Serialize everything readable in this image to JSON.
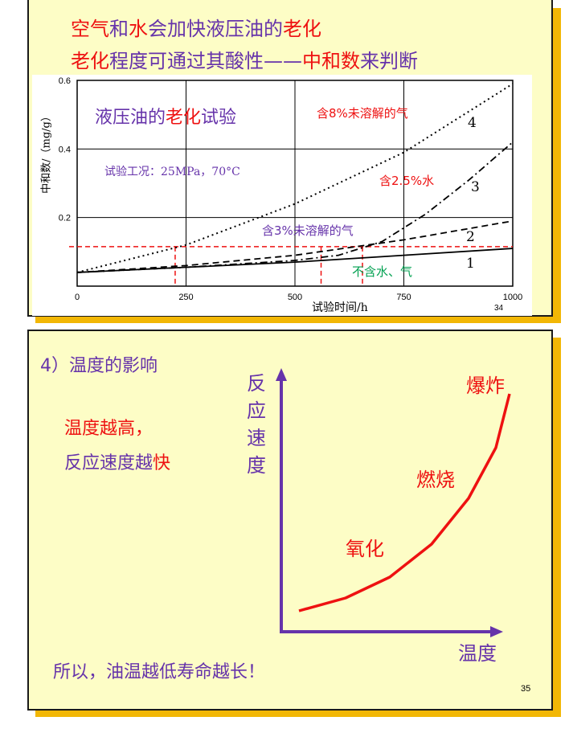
{
  "slide1": {
    "title_line1": [
      {
        "text": "空气",
        "color": "#ee1111"
      },
      {
        "text": "和",
        "color": "#6633aa"
      },
      {
        "text": "水",
        "color": "#ee1111"
      },
      {
        "text": "会加快液压油的",
        "color": "#6633aa"
      },
      {
        "text": "老化",
        "color": "#ee1111"
      }
    ],
    "title_line2": [
      {
        "text": "老化",
        "color": "#ee1111"
      },
      {
        "text": "程度可通过其酸性——",
        "color": "#6633aa"
      },
      {
        "text": "中和数",
        "color": "#ee1111"
      },
      {
        "text": "来判断",
        "color": "#6633aa"
      }
    ],
    "page_number": "34"
  },
  "chart_data": {
    "type": "line",
    "ylabel": "中和数/（mg/g）",
    "xlabel": "试验时间/h",
    "xlim": [
      0,
      1000
    ],
    "ylim": [
      0,
      0.6
    ],
    "x_ticks": [
      "0",
      "250",
      "500",
      "750",
      "1000"
    ],
    "y_ticks": [
      "0.2",
      "0.4",
      "0.6"
    ],
    "grid": true,
    "inner_title_parts": [
      {
        "text": "液压油的",
        "color": "#6633aa"
      },
      {
        "text": "老化",
        "color": "#ee1111"
      },
      {
        "text": "试验",
        "color": "#6633aa"
      }
    ],
    "condition_text": "试验工况：25MPa，70°C",
    "series": [
      {
        "number": "1",
        "label": "不含水、气",
        "label_color": "#00a050",
        "style": "solid",
        "x": [
          0,
          250,
          500,
          750,
          1000
        ],
        "y": [
          0.04,
          0.055,
          0.07,
          0.09,
          0.11
        ]
      },
      {
        "number": "2",
        "label": "含3%未溶解的气",
        "label_color": "#6633aa",
        "style": "dashed",
        "x": [
          0,
          250,
          500,
          750,
          1000
        ],
        "y": [
          0.04,
          0.06,
          0.09,
          0.135,
          0.19
        ]
      },
      {
        "number": "3",
        "label": "含2.5%水",
        "label_color": "#ee1111",
        "style": "dashdot",
        "x": [
          0,
          250,
          500,
          600,
          700,
          800,
          900,
          1000
        ],
        "y": [
          0.04,
          0.055,
          0.075,
          0.09,
          0.13,
          0.21,
          0.31,
          0.42
        ]
      },
      {
        "number": "4",
        "label": "含8%未溶解的气",
        "label_color": "#ee1111",
        "style": "dotted",
        "x": [
          0,
          250,
          500,
          750,
          1000
        ],
        "y": [
          0.04,
          0.12,
          0.24,
          0.39,
          0.59
        ]
      }
    ],
    "reference_line_y": 0.115,
    "reference_markers_x": [
      225,
      560,
      655
    ]
  },
  "slide2": {
    "heading": "4）温度的影响",
    "text_line1": "温度越高，",
    "text_line2_parts": [
      {
        "text": "反应速度越",
        "color": "#6633aa"
      },
      {
        "text": "快",
        "color": "#ee1111"
      }
    ],
    "y_axis_label": "反应速度",
    "x_axis_label": "温度",
    "curve_labels": {
      "oxidation": "氧化",
      "burning": "燃烧",
      "explosion": "爆炸"
    },
    "conclusion": "所以，油温越低寿命越长！",
    "page_number": "35"
  }
}
